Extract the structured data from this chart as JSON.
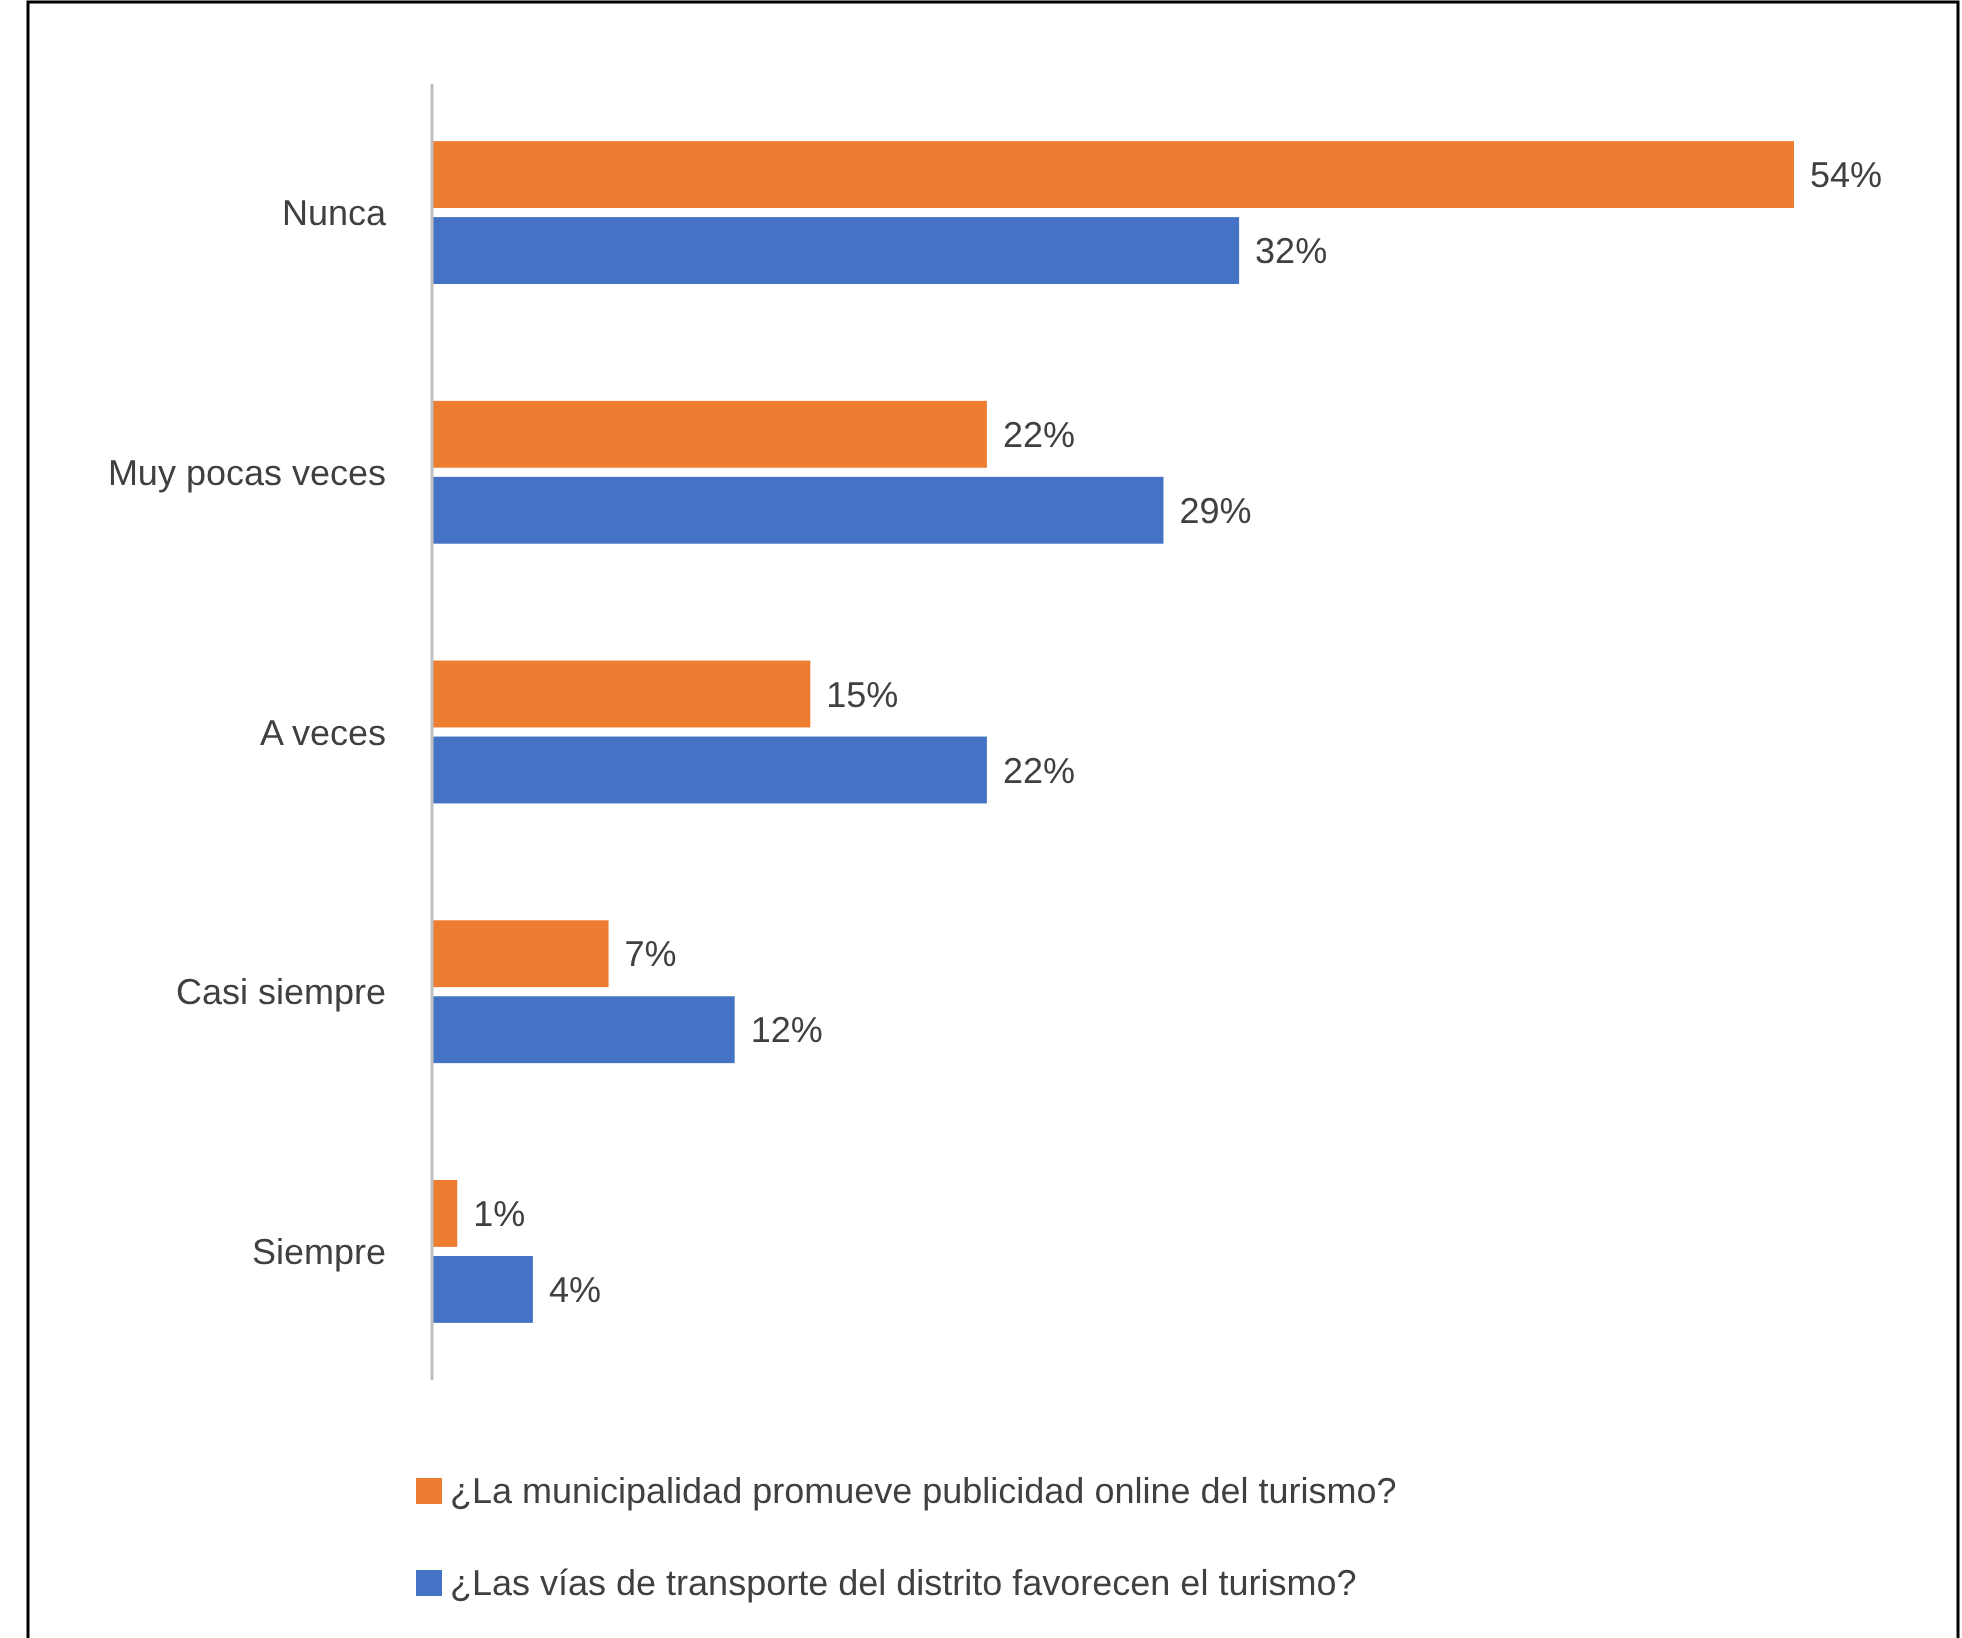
{
  "chart_data": {
    "type": "bar",
    "orientation": "horizontal",
    "categories": [
      "Nunca",
      "Muy pocas veces",
      "A veces",
      "Casi siempre",
      "Siempre"
    ],
    "series": [
      {
        "name": "¿La municipalidad promueve publicidad online del turismo?",
        "color": "#ed7d31",
        "values": [
          54,
          22,
          15,
          7,
          1
        ],
        "value_labels": [
          "54%",
          "22%",
          "15%",
          "7%",
          "1%"
        ]
      },
      {
        "name": "¿Las vías de transporte del distrito favorecen el turismo?",
        "color": "#4472c4",
        "values": [
          32,
          29,
          22,
          12,
          4
        ],
        "value_labels": [
          "32%",
          "29%",
          "22%",
          "12%",
          "4%"
        ]
      }
    ],
    "legend": "bottom",
    "grid": false
  }
}
